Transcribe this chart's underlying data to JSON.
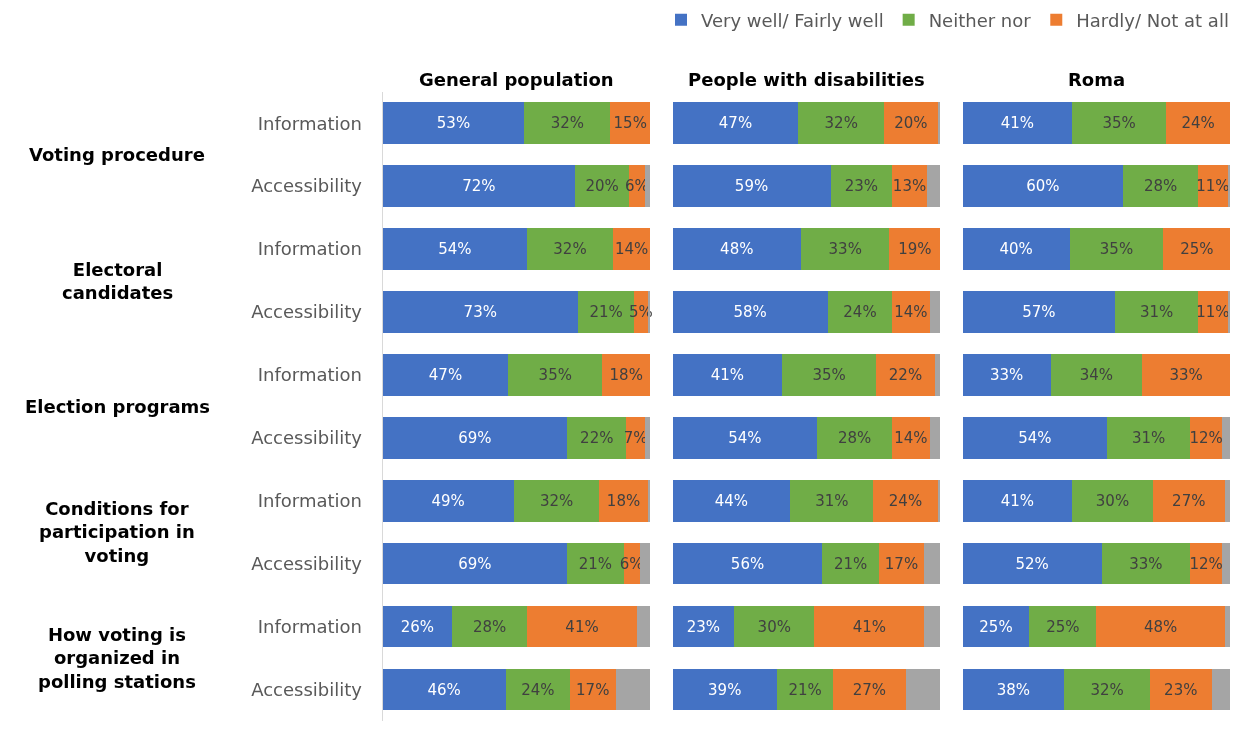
{
  "chart_data": [
    {
      "type": "bar",
      "orientation": "horizontal",
      "stacked": true,
      "title": "General population",
      "legend": "top right",
      "tick_labels": "y",
      "xlim": [
        0,
        100
      ],
      "categories": [
        "Information",
        "Accessibility",
        "Information",
        "Accessibility",
        "Information",
        "Accessibility",
        "Information",
        "Accessibility",
        "Information",
        "Accessibility"
      ],
      "annotations": [
        "Voting procedure",
        "Electoral candidates",
        "Election programs",
        "Conditions for participation in voting",
        "How voting is organized in polling stations"
      ],
      "series": [
        {
          "name": "Very well/ Fairly well",
          "color": "#4472c4",
          "values": [
            53,
            72,
            54,
            73,
            47,
            69,
            49,
            69,
            26,
            46
          ],
          "value_labels": [
            "53%",
            "72%",
            "54%",
            "73%",
            "47%",
            "69%",
            "49%",
            "69%",
            "26%",
            "46%"
          ]
        },
        {
          "name": "Neither nor",
          "color": "#70ad47",
          "values": [
            32,
            20,
            32,
            21,
            35,
            22,
            32,
            21,
            28,
            24
          ],
          "value_labels": [
            "32%",
            "20%",
            "32%",
            "21%",
            "35%",
            "22%",
            "32%",
            "21%",
            "28%",
            "24%"
          ]
        },
        {
          "name": "Hardly/ Not at all",
          "color": "#ed7d31",
          "values": [
            15,
            6,
            14,
            5,
            18,
            7,
            18,
            6,
            41,
            17
          ],
          "value_labels": [
            "15%",
            "6%",
            "14%",
            "5%",
            "18%",
            "7%",
            "18%",
            "6%",
            "41%",
            "17%"
          ]
        },
        {
          "color": "#a5a5a5",
          "values": [
            0,
            2,
            0,
            1,
            0,
            2,
            1,
            4,
            5,
            13
          ],
          "value_labels": [
            null,
            null,
            null,
            null,
            null,
            null,
            null,
            null,
            null,
            null
          ]
        }
      ]
    },
    {
      "type": "bar",
      "orientation": "horizontal",
      "stacked": true,
      "title": "People with disabilities",
      "tick_labels": false,
      "xlim": [
        0,
        100
      ],
      "categories": [
        "Information",
        "Accessibility",
        "Information",
        "Accessibility",
        "Information",
        "Accessibility",
        "Information",
        "Accessibility",
        "Information",
        "Accessibility"
      ],
      "series": [
        {
          "color": "#4472c4",
          "values": [
            47,
            59,
            48,
            58,
            41,
            54,
            44,
            56,
            23,
            39
          ],
          "value_labels": [
            "47%",
            "59%",
            "48%",
            "58%",
            "41%",
            "54%",
            "44%",
            "56%",
            "23%",
            "39%"
          ]
        },
        {
          "color": "#70ad47",
          "values": [
            32,
            23,
            33,
            24,
            35,
            28,
            31,
            21,
            30,
            21
          ],
          "value_labels": [
            "32%",
            "23%",
            "33%",
            "24%",
            "35%",
            "28%",
            "31%",
            "21%",
            "30%",
            "21%"
          ]
        },
        {
          "color": "#ed7d31",
          "values": [
            20,
            13,
            19,
            14,
            22,
            14,
            24,
            17,
            41,
            27
          ],
          "value_labels": [
            "20%",
            "13%",
            "19%",
            "14%",
            "22%",
            "14%",
            "24%",
            "17%",
            "41%",
            "27%"
          ]
        },
        {
          "color": "#a5a5a5",
          "values": [
            1,
            5,
            0,
            4,
            2,
            4,
            1,
            6,
            6,
            13
          ],
          "value_labels": [
            null,
            null,
            null,
            null,
            null,
            null,
            null,
            null,
            null,
            null
          ]
        }
      ]
    },
    {
      "type": "bar",
      "orientation": "horizontal",
      "stacked": true,
      "title": "Roma",
      "tick_labels": false,
      "xlim": [
        0,
        100
      ],
      "categories": [
        "Information",
        "Accessibility",
        "Information",
        "Accessibility",
        "Information",
        "Accessibility",
        "Information",
        "Accessibility",
        "Information",
        "Accessibility"
      ],
      "series": [
        {
          "color": "#4472c4",
          "values": [
            41,
            60,
            40,
            57,
            33,
            54,
            41,
            52,
            25,
            38
          ],
          "value_labels": [
            "41%",
            "60%",
            "40%",
            "57%",
            "33%",
            "54%",
            "41%",
            "52%",
            "25%",
            "38%"
          ]
        },
        {
          "color": "#70ad47",
          "values": [
            35,
            28,
            35,
            31,
            34,
            31,
            30,
            33,
            25,
            32
          ],
          "value_labels": [
            "35%",
            "28%",
            "35%",
            "31%",
            "34%",
            "31%",
            "30%",
            "33%",
            "25%",
            "32%"
          ]
        },
        {
          "color": "#ed7d31",
          "values": [
            24,
            11,
            25,
            11,
            33,
            12,
            27,
            12,
            48,
            23
          ],
          "value_labels": [
            "24%",
            "11%",
            "25%",
            "11%",
            "33%",
            "12%",
            "27%",
            "12%",
            "48%",
            "23%"
          ]
        },
        {
          "color": "#a5a5a5",
          "values": [
            0,
            1,
            0,
            1,
            0,
            3,
            2,
            3,
            2,
            7
          ],
          "value_labels": [
            null,
            null,
            null,
            null,
            null,
            null,
            null,
            null,
            null,
            null
          ]
        }
      ]
    }
  ]
}
